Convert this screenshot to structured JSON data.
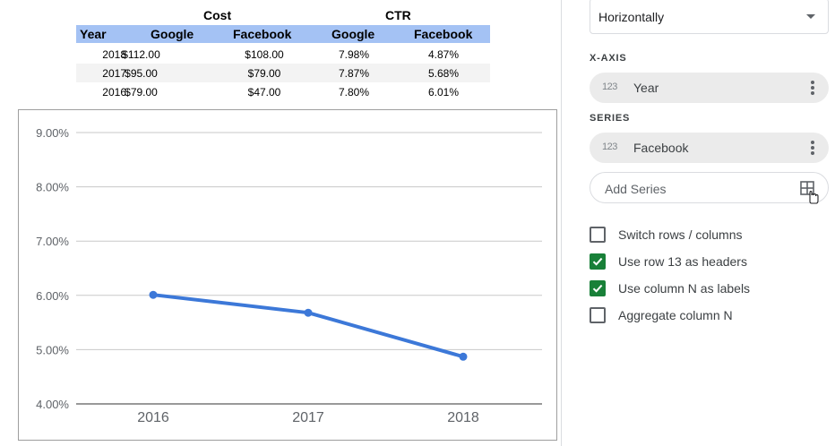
{
  "table": {
    "groups": {
      "cost": "Cost",
      "ctr": "CTR"
    },
    "headers": [
      "Year",
      "Google",
      "Facebook",
      "Google",
      "Facebook"
    ],
    "rows": [
      [
        "2018",
        "$112.00",
        "$108.00",
        "7.98%",
        "4.87%"
      ],
      [
        "2017",
        "$95.00",
        "$79.00",
        "7.87%",
        "5.68%"
      ],
      [
        "2016",
        "$79.00",
        "$47.00",
        "7.80%",
        "6.01%"
      ]
    ]
  },
  "chart_data": {
    "type": "line",
    "title": "",
    "xlabel": "",
    "ylabel": "",
    "categories": [
      "2016",
      "2017",
      "2018"
    ],
    "series": [
      {
        "name": "Facebook",
        "values": [
          6.01,
          5.68,
          4.87
        ],
        "color": "#3c78d8"
      }
    ],
    "y_ticks": [
      "4.00%",
      "5.00%",
      "6.00%",
      "7.00%",
      "8.00%",
      "9.00%"
    ],
    "ylim": [
      4,
      9
    ],
    "grid": true
  },
  "panel": {
    "stack_select": {
      "value": "Horizontally"
    },
    "xaxis": {
      "section_label": "X-AXIS",
      "chip_num": "123",
      "chip_label": "Year"
    },
    "series": {
      "section_label": "SERIES",
      "chip_num": "123",
      "chip_label": "Facebook"
    },
    "add_series_label": "Add Series",
    "checkboxes": [
      {
        "label": "Switch rows / columns",
        "checked": false
      },
      {
        "label": "Use row 13 as headers",
        "checked": true
      },
      {
        "label": "Use column N as labels",
        "checked": true
      },
      {
        "label": "Aggregate column N",
        "checked": false
      }
    ]
  },
  "colors": {
    "header_bg": "#a4c2f4",
    "accent": "#3c78d8",
    "check": "#188038"
  }
}
